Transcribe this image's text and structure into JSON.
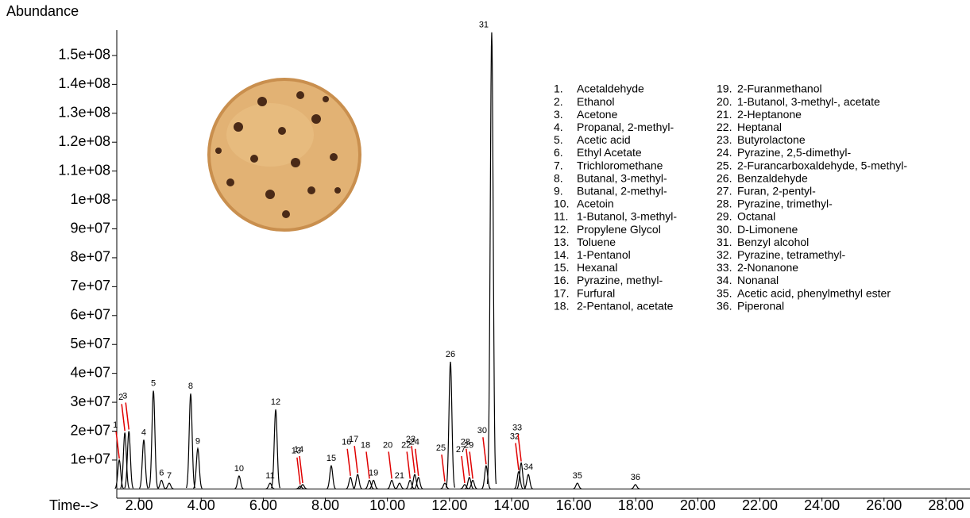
{
  "chart_data": {
    "type": "chromatogram",
    "ylabel": "Abundance",
    "xlabel": "Time-->",
    "xlim": [
      1.28,
      28.77
    ],
    "ylim": [
      -3000000,
      160000000
    ],
    "xticks": [
      {
        "value": 2,
        "label": "2.00"
      },
      {
        "value": 4,
        "label": "4.00"
      },
      {
        "value": 6,
        "label": "6.00"
      },
      {
        "value": 8,
        "label": "8.00"
      },
      {
        "value": 10,
        "label": "10.00"
      },
      {
        "value": 12,
        "label": "12.00"
      },
      {
        "value": 14,
        "label": "14.00"
      },
      {
        "value": 16,
        "label": "16.00"
      },
      {
        "value": 18,
        "label": "18.00"
      },
      {
        "value": 20,
        "label": "20.00"
      },
      {
        "value": 22,
        "label": "22.00"
      },
      {
        "value": 24,
        "label": "24.00"
      },
      {
        "value": 26,
        "label": "26.00"
      },
      {
        "value": 28,
        "label": "28.00"
      }
    ],
    "yticks": [
      {
        "value": 10000000,
        "label": "1e+07"
      },
      {
        "value": 20000000,
        "label": "2e+07"
      },
      {
        "value": 30000000,
        "label": "3e+07"
      },
      {
        "value": 40000000,
        "label": "4e+07"
      },
      {
        "value": 50000000,
        "label": "5e+07"
      },
      {
        "value": 60000000,
        "label": "6e+07"
      },
      {
        "value": 70000000,
        "label": "7e+07"
      },
      {
        "value": 80000000,
        "label": "8e+07"
      },
      {
        "value": 90000000,
        "label": "9e+07"
      },
      {
        "value": 100000000,
        "label": "1e+08"
      },
      {
        "value": 110000000,
        "label": "1.1e+08"
      },
      {
        "value": 120000000,
        "label": "1.2e+08"
      },
      {
        "value": 130000000,
        "label": "1.3e+08"
      },
      {
        "value": 140000000,
        "label": "1.4e+08"
      },
      {
        "value": 150000000,
        "label": "1.5e+08"
      }
    ],
    "color": "#000000",
    "leader_color": "#e00000",
    "peaks": {
      "labels": [
        "1",
        "2",
        "3",
        "4",
        "5",
        "6",
        "7",
        "8",
        "9",
        "10",
        "11",
        "12",
        "13",
        "14",
        "15",
        "16",
        "17",
        "18",
        "19",
        "20",
        "21",
        "22",
        "23",
        "24",
        "25",
        "26",
        "27",
        "28",
        "29",
        "30",
        "31",
        "32",
        "33",
        "34",
        "35",
        "36"
      ],
      "x": [
        1.36,
        1.54,
        1.67,
        2.15,
        2.46,
        2.72,
        2.97,
        3.66,
        3.89,
        5.22,
        6.22,
        6.4,
        7.19,
        7.27,
        8.19,
        8.81,
        9.04,
        9.42,
        9.55,
        10.14,
        10.39,
        10.73,
        10.88,
        11.0,
        11.85,
        12.03,
        12.49,
        12.64,
        12.75,
        13.18,
        13.36,
        14.23,
        14.31,
        14.54,
        16.12,
        17.99
      ],
      "values": [
        10000000,
        19500000,
        20000000,
        17000000,
        34000000,
        3000000,
        2000000,
        33000000,
        14000000,
        4500000,
        2000000,
        27500000,
        1000000,
        1500000,
        8000000,
        4000000,
        5000000,
        3000000,
        3000000,
        3000000,
        2000000,
        3000000,
        5000000,
        4000000,
        2000000,
        44000000,
        1500000,
        4000000,
        3000000,
        8000000,
        158000000,
        6000000,
        9000000,
        5000000,
        2000000,
        1500000
      ],
      "leader": [
        true,
        true,
        true,
        false,
        false,
        false,
        false,
        false,
        false,
        false,
        false,
        false,
        true,
        true,
        false,
        true,
        true,
        true,
        false,
        true,
        false,
        true,
        true,
        true,
        true,
        false,
        true,
        true,
        true,
        true,
        false,
        true,
        true,
        false,
        false,
        false
      ]
    },
    "legend": [
      {
        "no": "1.",
        "name": "Acetaldehyde"
      },
      {
        "no": "2.",
        "name": "Ethanol"
      },
      {
        "no": "3.",
        "name": "Acetone"
      },
      {
        "no": "4.",
        "name": "Propanal, 2-methyl-"
      },
      {
        "no": "5.",
        "name": "Acetic acid"
      },
      {
        "no": "6.",
        "name": "Ethyl Acetate"
      },
      {
        "no": "7.",
        "name": "Trichloromethane"
      },
      {
        "no": "8.",
        "name": "Butanal, 3-methyl-"
      },
      {
        "no": "9.",
        "name": "Butanal, 2-methyl-"
      },
      {
        "no": "10.",
        "name": "Acetoin"
      },
      {
        "no": "11.",
        "name": "1-Butanol, 3-methyl-"
      },
      {
        "no": "12.",
        "name": "Propylene Glycol"
      },
      {
        "no": "13.",
        "name": "Toluene"
      },
      {
        "no": "14.",
        "name": "1-Pentanol"
      },
      {
        "no": "15.",
        "name": "Hexanal"
      },
      {
        "no": "16.",
        "name": "Pyrazine, methyl-"
      },
      {
        "no": "17.",
        "name": "Furfural"
      },
      {
        "no": "18.",
        "name": "2-Pentanol, acetate"
      },
      {
        "no": "19.",
        "name": "2-Furanmethanol"
      },
      {
        "no": "20.",
        "name": "1-Butanol, 3-methyl-, acetate"
      },
      {
        "no": "21.",
        "name": "2-Heptanone"
      },
      {
        "no": "22.",
        "name": "Heptanal"
      },
      {
        "no": "23.",
        "name": "Butyrolactone"
      },
      {
        "no": "24.",
        "name": "Pyrazine, 2,5-dimethyl-"
      },
      {
        "no": "25.",
        "name": "2-Furancarboxaldehyde, 5-methyl-"
      },
      {
        "no": "26.",
        "name": "Benzaldehyde"
      },
      {
        "no": "27.",
        "name": "Furan, 2-pentyl-"
      },
      {
        "no": "28.",
        "name": "Pyrazine, trimethyl-"
      },
      {
        "no": "29.",
        "name": "Octanal"
      },
      {
        "no": "30.",
        "name": "D-Limonene"
      },
      {
        "no": "31.",
        "name": "Benzyl alcohol"
      },
      {
        "no": "32.",
        "name": "Pyrazine, tetramethyl-"
      },
      {
        "no": "33.",
        "name": "2-Nonanone"
      },
      {
        "no": "34.",
        "name": "Nonanal"
      },
      {
        "no": "35.",
        "name": "Acetic acid, phenylmethyl ester"
      },
      {
        "no": "36.",
        "name": "Piperonal"
      }
    ]
  }
}
